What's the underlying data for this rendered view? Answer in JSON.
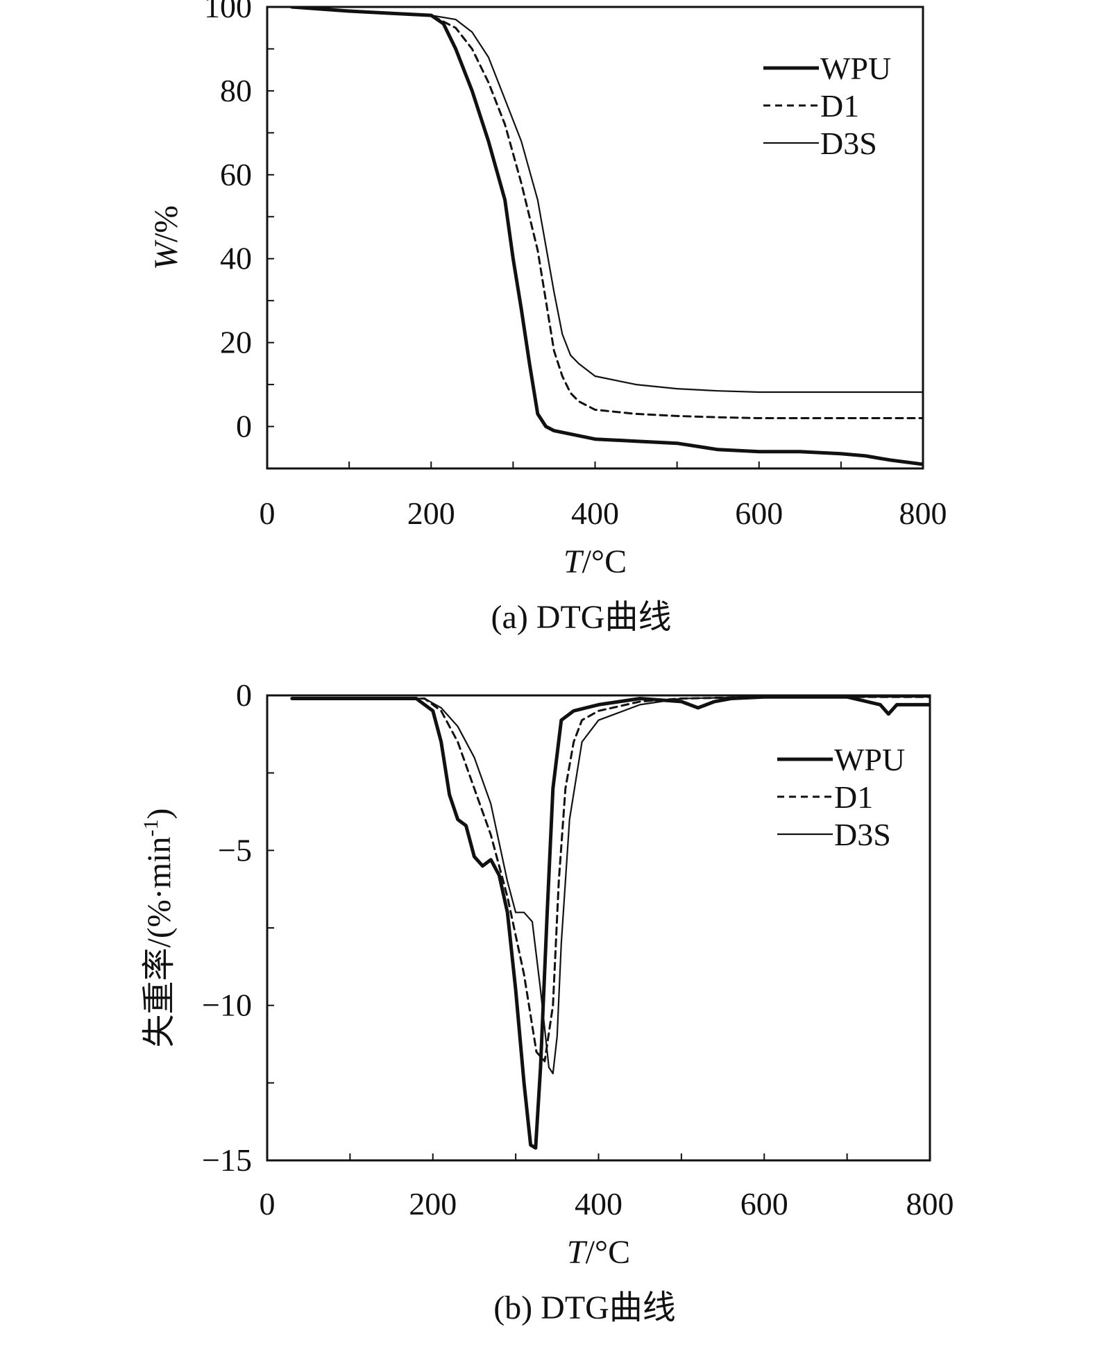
{
  "colors": {
    "ink": "#111111",
    "background": "#ffffff"
  },
  "chart_data": [
    {
      "type": "line",
      "caption": "(a) DTG曲线",
      "xlabel_var": "T",
      "xlabel_unit": "/°C",
      "ylabel_var": "W",
      "ylabel_unit": "/%",
      "xlim": [
        0,
        800
      ],
      "ylim": [
        -10,
        100
      ],
      "xticks": [
        0,
        200,
        400,
        600,
        800
      ],
      "yticks": [
        0,
        20,
        40,
        60,
        80,
        100
      ],
      "grid": false,
      "legend_position": "top-right",
      "series": [
        {
          "name": "WPU",
          "style": "thick-solid",
          "x": [
            30,
            100,
            150,
            200,
            215,
            230,
            250,
            270,
            290,
            300,
            310,
            320,
            330,
            340,
            350,
            400,
            450,
            500,
            550,
            600,
            650,
            700,
            730,
            760,
            800
          ],
          "y": [
            100,
            99,
            98.5,
            98,
            96,
            90,
            80,
            68,
            54,
            40,
            28,
            15,
            3,
            0,
            -1,
            -3,
            -3.5,
            -4,
            -5.5,
            -6,
            -6,
            -6.5,
            -7,
            -8,
            -9
          ]
        },
        {
          "name": "D1",
          "style": "dashed",
          "x": [
            30,
            100,
            150,
            200,
            210,
            230,
            250,
            270,
            290,
            310,
            320,
            330,
            340,
            350,
            360,
            370,
            380,
            400,
            450,
            500,
            550,
            600,
            700,
            800
          ],
          "y": [
            100,
            99,
            98.5,
            98,
            97,
            95,
            90,
            82,
            72,
            58,
            50,
            42,
            30,
            18,
            12,
            8,
            6,
            4,
            3,
            2.5,
            2.2,
            2,
            2,
            2
          ]
        },
        {
          "name": "D3S",
          "style": "thin-solid",
          "x": [
            30,
            100,
            150,
            200,
            215,
            230,
            250,
            270,
            290,
            310,
            330,
            350,
            360,
            370,
            380,
            400,
            450,
            500,
            550,
            600,
            700,
            800
          ],
          "y": [
            100,
            99,
            98.5,
            98,
            97.5,
            97,
            94,
            88,
            78,
            68,
            54,
            32,
            22,
            17,
            15,
            12,
            10,
            9,
            8.5,
            8.2,
            8.2,
            8.2
          ]
        }
      ]
    },
    {
      "type": "line",
      "caption": "(b) DTG曲线",
      "xlabel_var": "T",
      "xlabel_unit": "/°C",
      "ylabel": "失重率/(%·min",
      "ylabel_sup": "-1",
      "ylabel_close": ")",
      "xlim": [
        0,
        800
      ],
      "ylim": [
        -15,
        0
      ],
      "xticks": [
        0,
        200,
        400,
        600,
        800
      ],
      "yticks": [
        0,
        -5,
        -10,
        -15
      ],
      "ytick_labels": [
        "0",
        "−5",
        "−10",
        "−15"
      ],
      "grid": false,
      "legend_position": "top-right",
      "series": [
        {
          "name": "WPU",
          "style": "thick-solid",
          "x": [
            30,
            100,
            180,
            200,
            210,
            220,
            230,
            240,
            250,
            260,
            270,
            280,
            290,
            300,
            310,
            318,
            324,
            330,
            338,
            345,
            355,
            370,
            400,
            450,
            500,
            520,
            540,
            560,
            600,
            700,
            740,
            750,
            760,
            800
          ],
          "y": [
            -0.1,
            -0.1,
            -0.1,
            -0.5,
            -1.5,
            -3.2,
            -4.0,
            -4.2,
            -5.2,
            -5.5,
            -5.3,
            -5.8,
            -7.0,
            -9.5,
            -12.5,
            -14.5,
            -14.6,
            -12,
            -7,
            -3,
            -0.8,
            -0.5,
            -0.3,
            -0.1,
            -0.2,
            -0.4,
            -0.2,
            -0.1,
            -0.05,
            -0.05,
            -0.3,
            -0.6,
            -0.3,
            -0.3
          ]
        },
        {
          "name": "D1",
          "style": "dashed",
          "x": [
            30,
            100,
            190,
            210,
            230,
            250,
            270,
            290,
            310,
            325,
            335,
            345,
            352,
            360,
            370,
            380,
            400,
            450,
            500,
            600,
            700,
            800
          ],
          "y": [
            -0.1,
            -0.1,
            -0.1,
            -0.5,
            -1.5,
            -3.0,
            -4.5,
            -6.5,
            -9.0,
            -11.5,
            -11.8,
            -10,
            -6,
            -3,
            -1.5,
            -0.8,
            -0.5,
            -0.2,
            -0.1,
            -0.05,
            -0.05,
            -0.05
          ]
        },
        {
          "name": "D3S",
          "style": "thin-solid",
          "x": [
            30,
            100,
            190,
            210,
            230,
            250,
            270,
            290,
            300,
            310,
            320,
            330,
            340,
            345,
            350,
            355,
            365,
            380,
            400,
            450,
            500,
            600,
            700,
            800
          ],
          "y": [
            -0.1,
            -0.1,
            -0.1,
            -0.4,
            -1.0,
            -2.0,
            -3.5,
            -6.0,
            -7.0,
            -7.0,
            -7.3,
            -9.5,
            -12.0,
            -12.2,
            -11.0,
            -8.0,
            -4.0,
            -1.5,
            -0.8,
            -0.3,
            -0.1,
            -0.05,
            -0.05,
            -0.05
          ]
        }
      ]
    }
  ]
}
